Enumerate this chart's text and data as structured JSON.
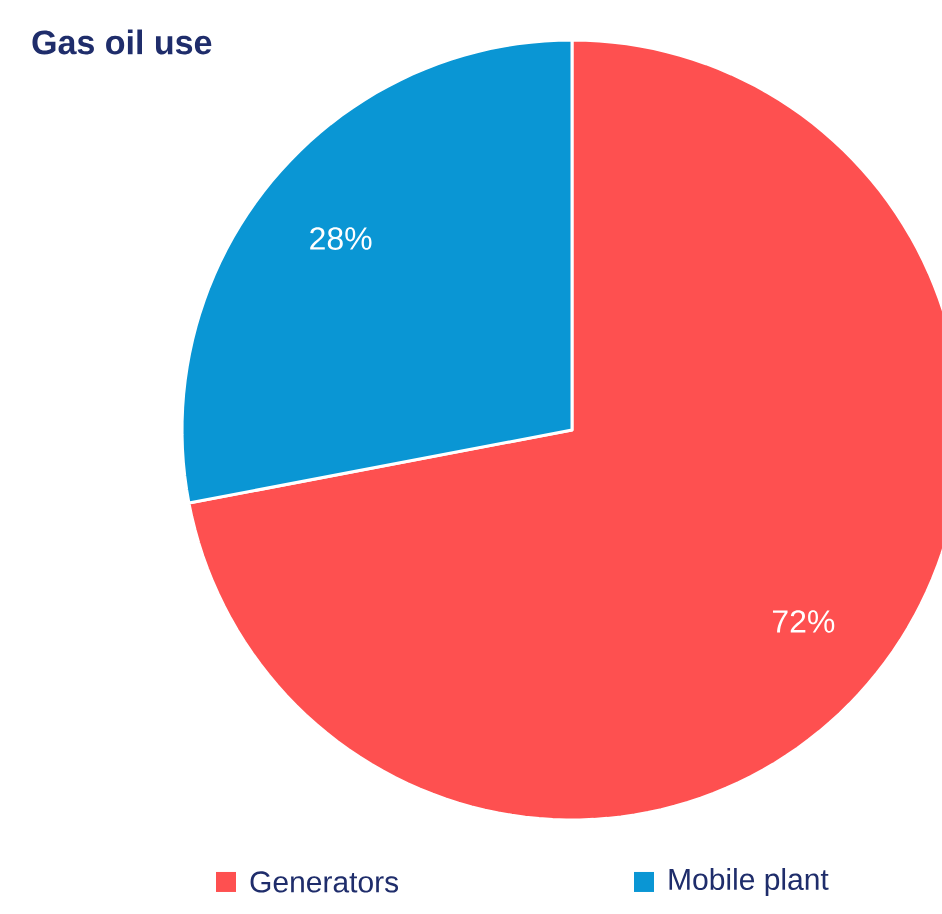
{
  "chart_data": {
    "type": "pie",
    "title": "Gas oil use",
    "categories": [
      "Generators",
      "Mobile plant"
    ],
    "values": [
      72,
      28
    ],
    "colors": [
      "#fe5050",
      "#0a96d4"
    ],
    "value_labels": [
      "72%",
      "28%"
    ],
    "legend": "bottom"
  }
}
